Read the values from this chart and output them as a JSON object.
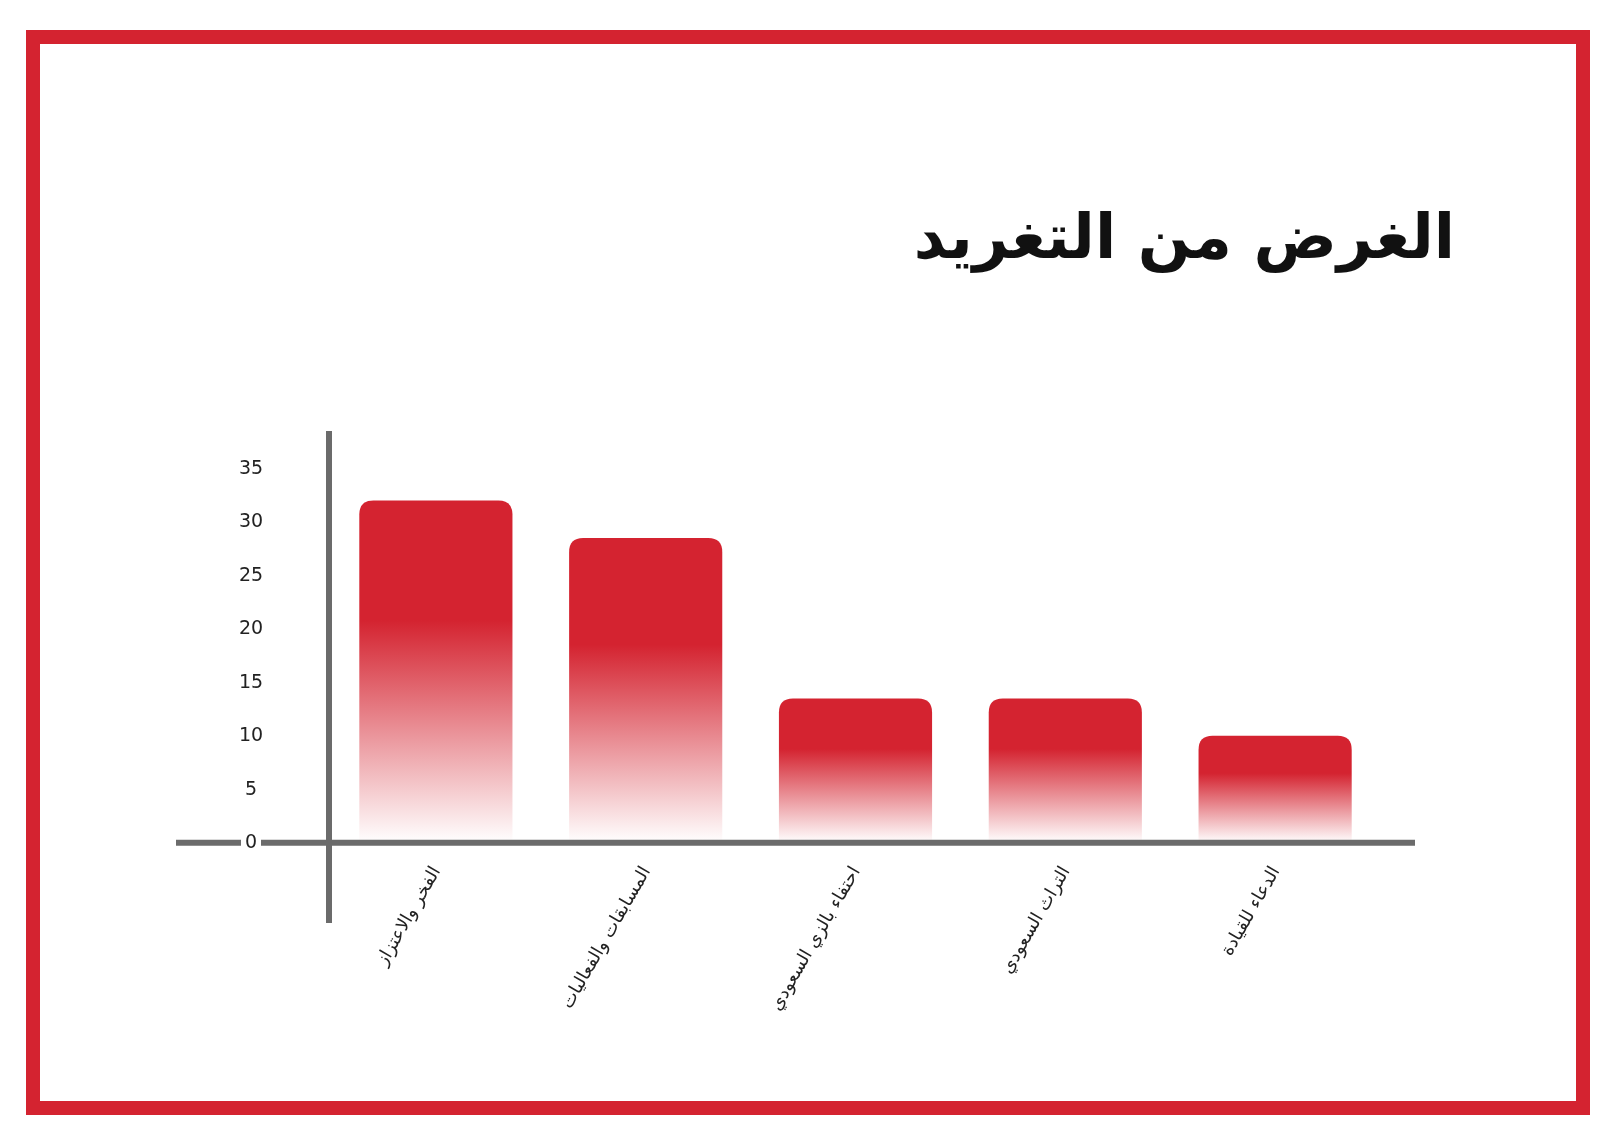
{
  "chart_data": {
    "type": "bar",
    "title": "الغرض من التغريد",
    "categories": [
      "الفخر والاعتزاز",
      "المسابقات والفعاليات",
      "احتفاء بالزي السعودي",
      "التراث السعودي",
      "الدعاء للقيادة"
    ],
    "values": [
      32,
      28.5,
      13.5,
      13.5,
      10
    ],
    "color": "#d42330",
    "ylim": [
      -7.5,
      38.5
    ],
    "yticks": [
      0,
      5,
      10,
      15,
      20,
      25,
      30,
      35
    ]
  }
}
